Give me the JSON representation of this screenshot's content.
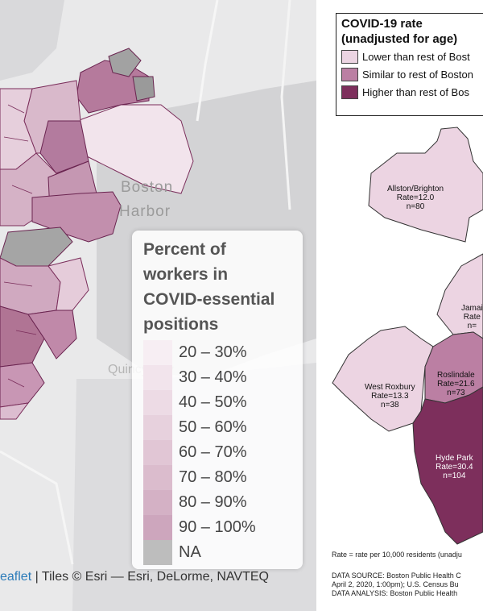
{
  "left_map": {
    "place_labels": {
      "boston": "Boston",
      "harbor": "Harbor",
      "quincy": "Quincy Bay"
    },
    "legend": {
      "title_lines": [
        "Percent of",
        "workers in",
        "COVID-essential",
        "positions"
      ],
      "bins": [
        {
          "label": "20 – 30%",
          "color": "#f7eef3"
        },
        {
          "label": "30 – 40%",
          "color": "#f2e4ec"
        },
        {
          "label": "40 – 50%",
          "color": "#eddbe5"
        },
        {
          "label": "50 – 60%",
          "color": "#e7d1dd"
        },
        {
          "label": "60 – 70%",
          "color": "#e1c6d5"
        },
        {
          "label": "70 – 80%",
          "color": "#dbbccd"
        },
        {
          "label": "80 – 90%",
          "color": "#d4b1c5"
        },
        {
          "label": "90 – 100%",
          "color": "#cda6bd"
        },
        {
          "label": "NA",
          "color": "#bdbdbd"
        }
      ]
    },
    "attribution": {
      "leaflet": "eaflet",
      "rest": " | Tiles © Esri — Esri, DeLorme, NAVTEQ"
    }
  },
  "right_map": {
    "legend": {
      "title_line1": "COVID-19 rate",
      "title_line2": "(unadjusted for age)",
      "categories": [
        {
          "label": "Lower than rest of Bost",
          "color": "#ecd4e2"
        },
        {
          "label": "Similar to rest of Boston",
          "color": "#bb7fa3"
        },
        {
          "label": "Higher than rest of Bos",
          "color": "#7d2f5c"
        }
      ]
    },
    "neighborhoods": [
      {
        "name": "Allston/Brighton",
        "rate": "Rate=12.0",
        "n": "n=80"
      },
      {
        "name": "Jamai",
        "rate": "Rate",
        "n": "n="
      },
      {
        "name": "West Roxbury",
        "rate": "Rate=13.3",
        "n": "n=38"
      },
      {
        "name": "Roslindale",
        "rate": "Rate=21.6",
        "n": "n=73"
      },
      {
        "name": "Hyde Park",
        "rate": "Rate=30.4",
        "n": "n=104"
      }
    ],
    "footnotes": {
      "rate_note": "Rate = rate per 10,000 residents (unadju",
      "source_line1": "DATA SOURCE: Boston Public Health C",
      "source_line2": "April 2, 2020, 1:00pm); U.S. Census Bu",
      "analysis": "DATA ANALYSIS: Boston Public Health "
    }
  }
}
